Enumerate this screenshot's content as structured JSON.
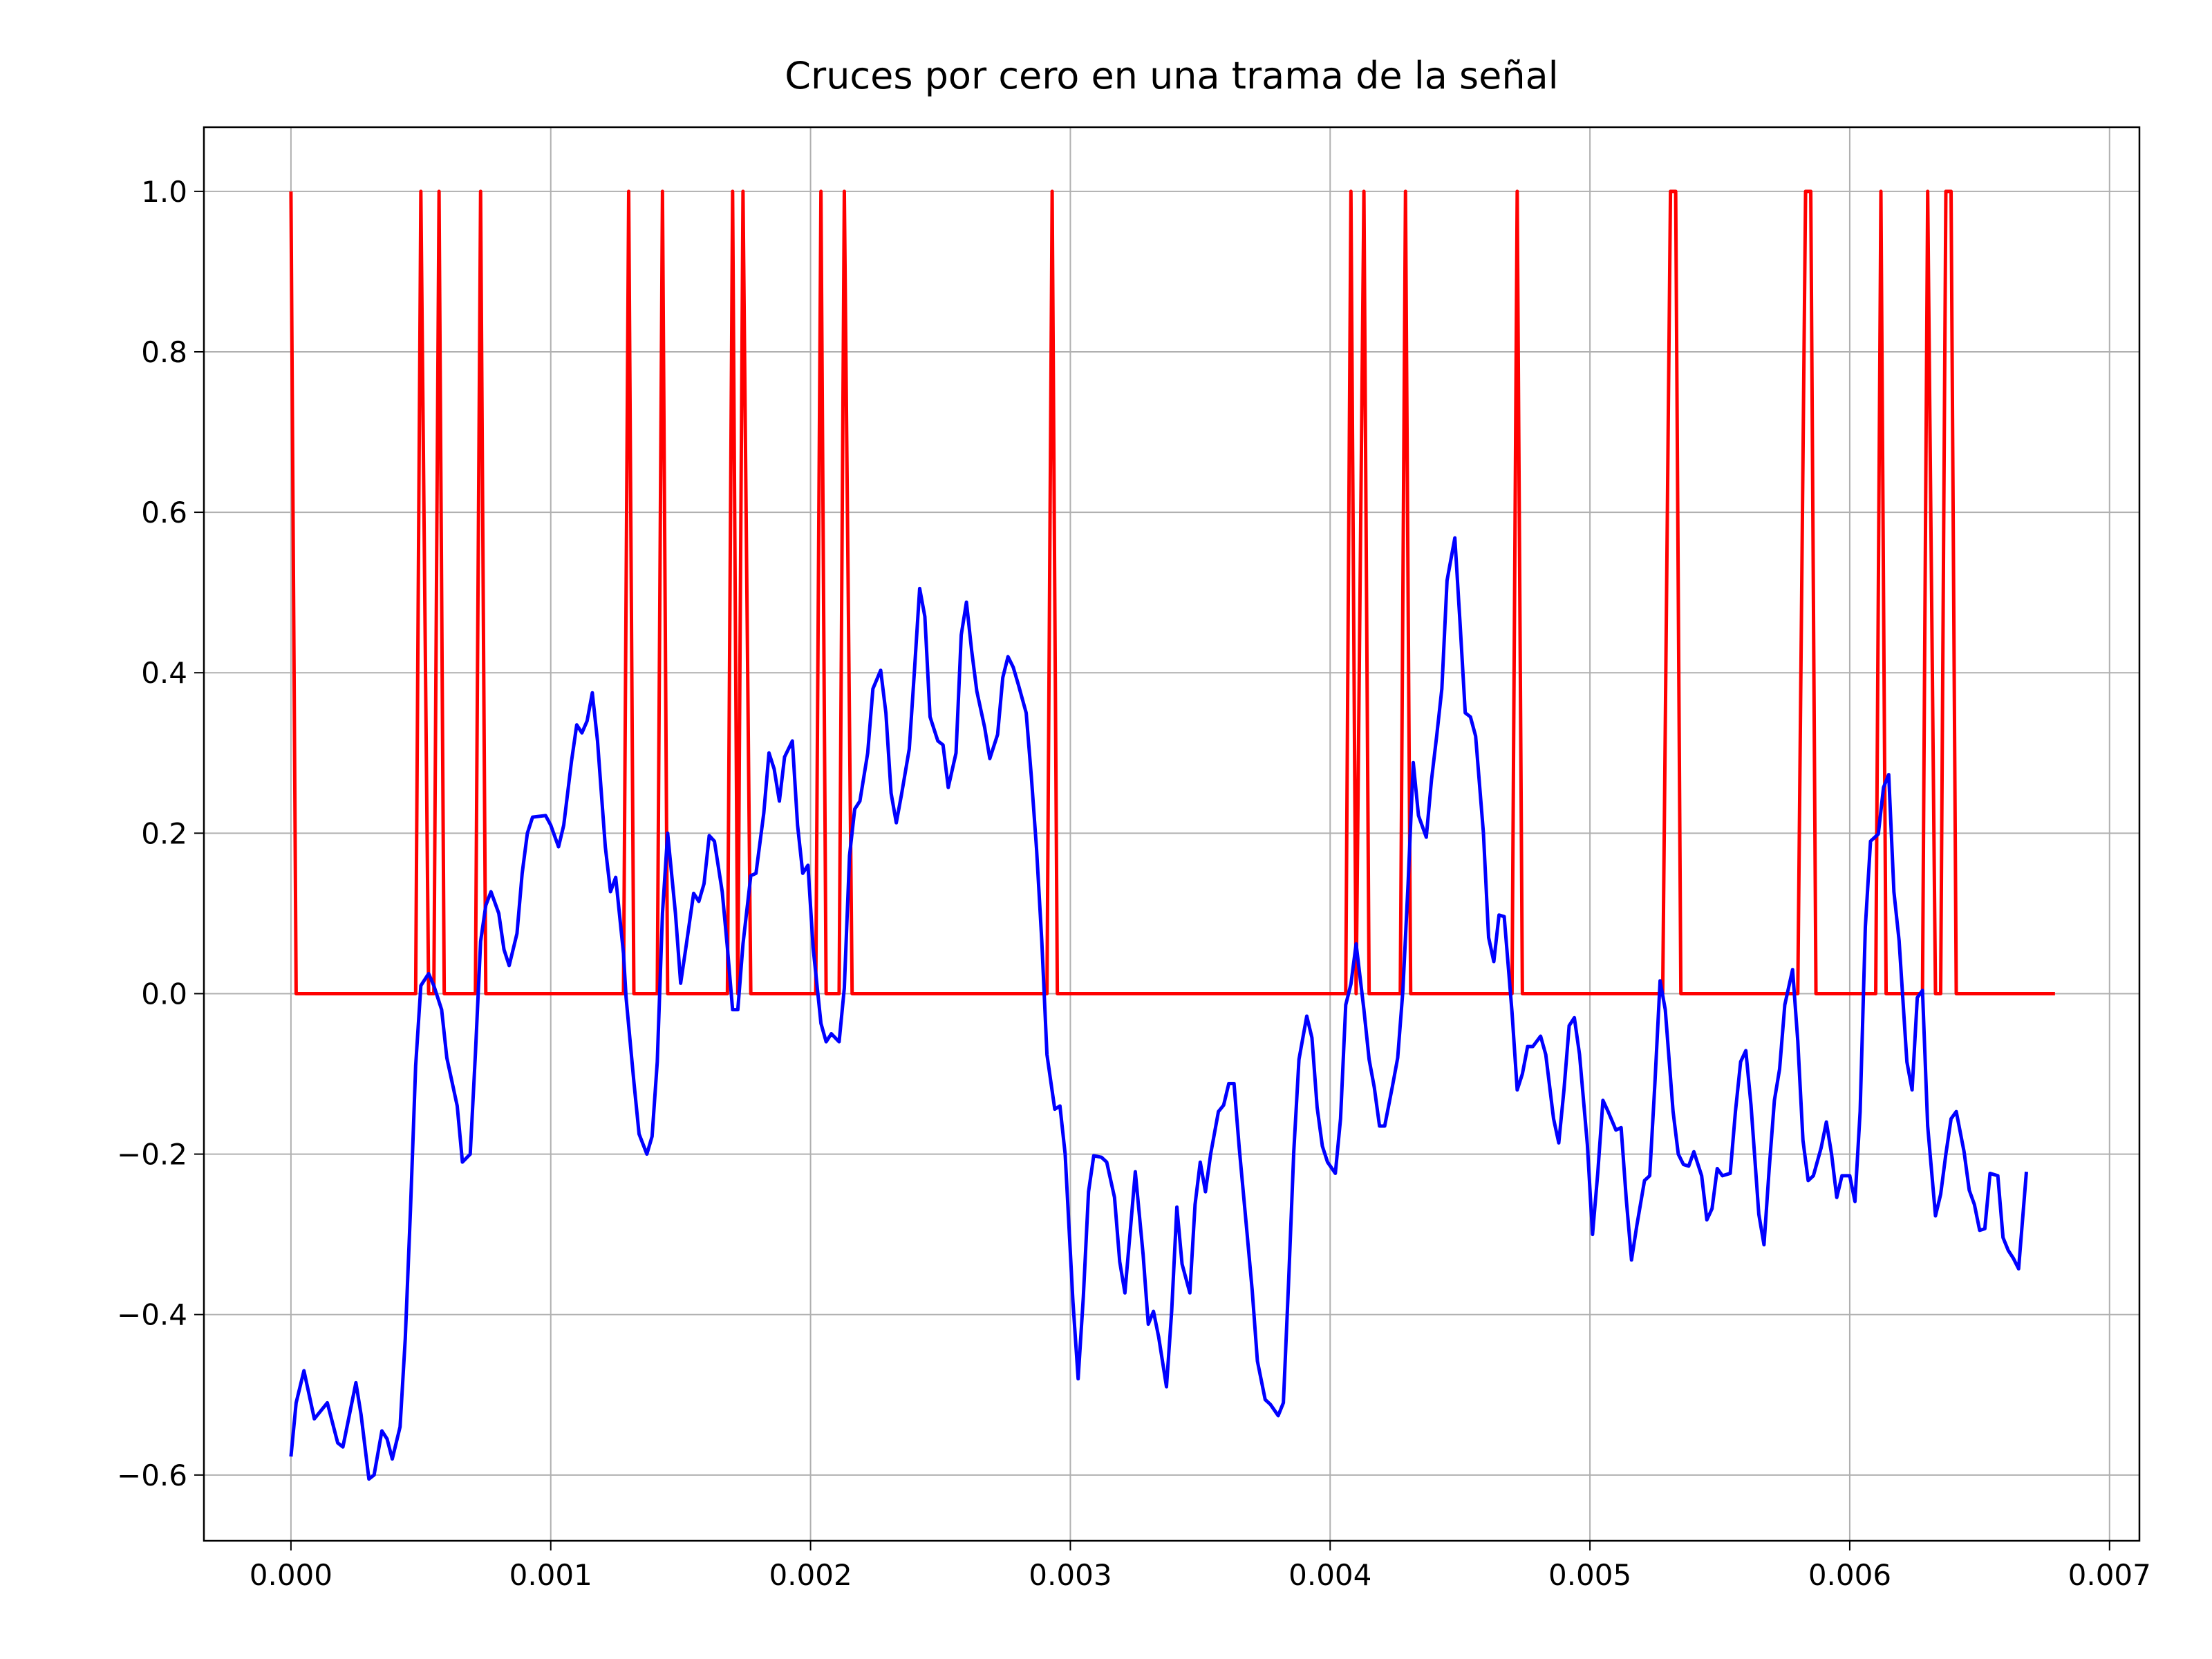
{
  "chart_data": {
    "type": "line",
    "title": "Cruces por cero en una trama de la señal",
    "xlim": [
      -0.000335,
      0.007115
    ],
    "ylim": [
      -0.682,
      1.08
    ],
    "grid": true,
    "xticks": [
      {
        "value": 0,
        "label": "0.000"
      },
      {
        "value": 0.001,
        "label": "0.001"
      },
      {
        "value": 0.002,
        "label": "0.002"
      },
      {
        "value": 0.003,
        "label": "0.003"
      },
      {
        "value": 0.004,
        "label": "0.004"
      },
      {
        "value": 0.005,
        "label": "0.005"
      },
      {
        "value": 0.006,
        "label": "0.006"
      },
      {
        "value": 0.007,
        "label": "0.007"
      }
    ],
    "yticks": [
      {
        "value": -0.6,
        "label": "−0.6"
      },
      {
        "value": -0.4,
        "label": "−0.4"
      },
      {
        "value": -0.2,
        "label": "−0.2"
      },
      {
        "value": 0,
        "label": "0.0"
      },
      {
        "value": 0.2,
        "label": "0.2"
      },
      {
        "value": 0.4,
        "label": "0.4"
      },
      {
        "value": 0.6,
        "label": "0.6"
      },
      {
        "value": 0.8,
        "label": "0.8"
      },
      {
        "value": 1,
        "label": "1.0"
      }
    ],
    "series": [
      {
        "color": "#ff0000",
        "x": [
          0,
          2e-05,
          0.00048,
          0.0005,
          0.00053,
          0.00055,
          0.00057,
          0.00059,
          0.00071,
          0.00073,
          0.00075,
          0.00128,
          0.0013,
          0.00132,
          0.00141,
          0.00143,
          0.00145,
          0.00168,
          0.0017,
          0.00172,
          0.00174,
          0.00177,
          0.00202,
          0.00204,
          0.00206,
          0.00211,
          0.00213,
          0.00216,
          0.00291,
          0.00293,
          0.00295,
          0.00406,
          0.00408,
          0.0041,
          0.00413,
          0.00415,
          0.00427,
          0.00429,
          0.00431,
          0.0047,
          0.00472,
          0.00474,
          0.00528,
          0.00531,
          0.00533,
          0.00535,
          0.0058,
          0.00583,
          0.00585,
          0.00587,
          0.0061,
          0.00612,
          0.00614,
          0.00628,
          0.0063,
          0.00633,
          0.00635,
          0.00637,
          0.00639,
          0.00641,
          0.00679
        ],
        "values": [
          1,
          0,
          0,
          1,
          0,
          0,
          1,
          0,
          0,
          1,
          0,
          0,
          1,
          0,
          0,
          1,
          0,
          0,
          1,
          0,
          1,
          0,
          0,
          1,
          0,
          0,
          1,
          0,
          0,
          1,
          0,
          0,
          1,
          0,
          1,
          0,
          0,
          1,
          0,
          0,
          1,
          0,
          0,
          1,
          1,
          0,
          0,
          1,
          1,
          0,
          0,
          1,
          0,
          0,
          1,
          0,
          0,
          1,
          1,
          0,
          0
        ]
      },
      {
        "color": "#0000ff",
        "x": [
          0,
          2e-05,
          5e-05,
          9e-05,
          0.00014,
          0.00018,
          0.0002,
          0.00025,
          0.00027,
          0.0003,
          0.00032,
          0.00035,
          0.00037,
          0.00039,
          0.00042,
          0.00044,
          0.00046,
          0.00048,
          0.0005,
          0.00053,
          0.00055,
          0.00058,
          0.0006,
          0.00064,
          0.00066,
          0.00069,
          0.00071,
          0.00073,
          0.00075,
          0.00077,
          0.0008,
          0.00082,
          0.00084,
          0.00087,
          0.00089,
          0.00091,
          0.00093,
          0.00098,
          0.001,
          0.00103,
          0.00105,
          0.00108,
          0.0011,
          0.00112,
          0.00114,
          0.00116,
          0.00118,
          0.00121,
          0.00123,
          0.00125,
          0.00128,
          0.00129,
          0.00132,
          0.00134,
          0.00137,
          0.00139,
          0.00141,
          0.00143,
          0.00145,
          0.00148,
          0.0015,
          0.00152,
          0.00155,
          0.00157,
          0.00159,
          0.00161,
          0.00163,
          0.00166,
          0.00168,
          0.0017,
          0.00172,
          0.00174,
          0.00177,
          0.00179,
          0.00182,
          0.00184,
          0.00186,
          0.00188,
          0.0019,
          0.00193,
          0.00195,
          0.00197,
          0.00199,
          0.00201,
          0.00204,
          0.00206,
          0.00208,
          0.00211,
          0.00213,
          0.00215,
          0.00217,
          0.00219,
          0.00222,
          0.00224,
          0.00227,
          0.00229,
          0.00231,
          0.00233,
          0.00235,
          0.00238,
          0.0024,
          0.00242,
          0.00244,
          0.00246,
          0.00249,
          0.00251,
          0.00253,
          0.00256,
          0.00258,
          0.0026,
          0.00262,
          0.00264,
          0.00267,
          0.00269,
          0.00272,
          0.00274,
          0.00276,
          0.00278,
          0.0028,
          0.00283,
          0.00285,
          0.00287,
          0.00289,
          0.00291,
          0.00294,
          0.00296,
          0.00298,
          0.00301,
          0.00303,
          0.00305,
          0.00307,
          0.00309,
          0.00312,
          0.00314,
          0.00317,
          0.00319,
          0.00321,
          0.00323,
          0.00325,
          0.00328,
          0.0033,
          0.00332,
          0.00334,
          0.00337,
          0.00339,
          0.00341,
          0.00343,
          0.00346,
          0.00348,
          0.0035,
          0.00352,
          0.00354,
          0.00357,
          0.00359,
          0.00361,
          0.00363,
          0.00365,
          0.00368,
          0.0037,
          0.00372,
          0.00375,
          0.00377,
          0.0038,
          0.00382,
          0.00384,
          0.00386,
          0.00388,
          0.00391,
          0.00393,
          0.00395,
          0.00397,
          0.00399,
          0.00402,
          0.00404,
          0.00406,
          0.00408,
          0.0041,
          0.00413,
          0.00415,
          0.00417,
          0.00419,
          0.00421,
          0.00424,
          0.00426,
          0.00428,
          0.0043,
          0.00432,
          0.00434,
          0.00437,
          0.00439,
          0.00441,
          0.00443,
          0.00445,
          0.00448,
          0.0045,
          0.00452,
          0.00454,
          0.00456,
          0.00459,
          0.00461,
          0.00463,
          0.00465,
          0.00467,
          0.0047,
          0.00472,
          0.00474,
          0.00476,
          0.00478,
          0.00481,
          0.00483,
          0.00486,
          0.00488,
          0.0049,
          0.00492,
          0.00494,
          0.00496,
          0.00499,
          0.00501,
          0.00503,
          0.00505,
          0.00507,
          0.0051,
          0.00512,
          0.00514,
          0.00516,
          0.00518,
          0.00521,
          0.00523,
          0.00525,
          0.00527,
          0.00529,
          0.00532,
          0.00534,
          0.00536,
          0.00538,
          0.0054,
          0.00543,
          0.00545,
          0.00547,
          0.00549,
          0.00551,
          0.00554,
          0.00556,
          0.00558,
          0.0056,
          0.00562,
          0.00565,
          0.00567,
          0.00569,
          0.00571,
          0.00573,
          0.00575,
          0.00578,
          0.0058,
          0.00582,
          0.00584,
          0.00586,
          0.00589,
          0.00591,
          0.00593,
          0.00595,
          0.00597,
          0.006,
          0.00602,
          0.00604,
          0.00606,
          0.00608,
          0.00611,
          0.00613,
          0.00615,
          0.00617,
          0.00619,
          0.00622,
          0.00624,
          0.00626,
          0.00628,
          0.0063,
          0.00633,
          0.00635,
          0.00637,
          0.00639,
          0.00641,
          0.00644,
          0.00646,
          0.00648,
          0.0065,
          0.00652,
          0.00654,
          0.00657,
          0.00659,
          0.00661,
          0.00663,
          0.00665,
          0.00668
        ],
        "values": [
          -0.577,
          -0.51,
          -0.47,
          -0.53,
          -0.51,
          -0.56,
          -0.565,
          -0.485,
          -0.525,
          -0.605,
          -0.6,
          -0.545,
          -0.555,
          -0.58,
          -0.54,
          -0.43,
          -0.27,
          -0.09,
          0.01,
          0.025,
          0.01,
          -0.02,
          -0.08,
          -0.14,
          -0.21,
          -0.2,
          -0.075,
          0.065,
          0.11,
          0.127,
          0.1,
          0.055,
          0.035,
          0.075,
          0.15,
          0.2,
          0.22,
          0.222,
          0.21,
          0.183,
          0.21,
          0.29,
          0.335,
          0.325,
          0.34,
          0.375,
          0.315,
          0.183,
          0.127,
          0.145,
          0.05,
          -0.005,
          -0.11,
          -0.175,
          -0.2,
          -0.178,
          -0.085,
          0.1,
          0.2,
          0.1,
          0.013,
          0.057,
          0.125,
          0.115,
          0.137,
          0.197,
          0.19,
          0.127,
          0.057,
          -0.02,
          -0.02,
          0.062,
          0.147,
          0.15,
          0.225,
          0.3,
          0.28,
          0.24,
          0.295,
          0.315,
          0.21,
          0.15,
          0.16,
          0.057,
          -0.037,
          -0.06,
          -0.05,
          -0.06,
          0.007,
          0.172,
          0.23,
          0.24,
          0.3,
          0.38,
          0.403,
          0.35,
          0.25,
          0.213,
          0.248,
          0.305,
          0.403,
          0.505,
          0.47,
          0.345,
          0.315,
          0.31,
          0.257,
          0.3,
          0.447,
          0.488,
          0.428,
          0.377,
          0.332,
          0.293,
          0.323,
          0.394,
          0.42,
          0.407,
          0.385,
          0.35,
          0.27,
          0.18,
          0.066,
          -0.076,
          -0.144,
          -0.14,
          -0.2,
          -0.384,
          -0.48,
          -0.378,
          -0.247,
          -0.202,
          -0.204,
          -0.21,
          -0.254,
          -0.334,
          -0.373,
          -0.298,
          -0.222,
          -0.325,
          -0.412,
          -0.396,
          -0.428,
          -0.49,
          -0.396,
          -0.266,
          -0.337,
          -0.373,
          -0.263,
          -0.21,
          -0.247,
          -0.2,
          -0.147,
          -0.139,
          -0.112,
          -0.112,
          -0.192,
          -0.298,
          -0.37,
          -0.458,
          -0.506,
          -0.512,
          -0.526,
          -0.51,
          -0.36,
          -0.197,
          -0.082,
          -0.028,
          -0.055,
          -0.142,
          -0.19,
          -0.21,
          -0.224,
          -0.156,
          -0.014,
          0.012,
          0.062,
          -0.02,
          -0.082,
          -0.117,
          -0.165,
          -0.165,
          -0.115,
          -0.08,
          0.004,
          0.137,
          0.288,
          0.222,
          0.195,
          0.266,
          0.321,
          0.38,
          0.515,
          0.568,
          0.462,
          0.35,
          0.345,
          0.321,
          0.2,
          0.07,
          0.04,
          0.098,
          0.096,
          -0.023,
          -0.12,
          -0.1,
          -0.066,
          -0.066,
          -0.053,
          -0.076,
          -0.156,
          -0.186,
          -0.12,
          -0.04,
          -0.03,
          -0.076,
          -0.188,
          -0.3,
          -0.224,
          -0.133,
          -0.147,
          -0.17,
          -0.167,
          -0.257,
          -0.332,
          -0.29,
          -0.233,
          -0.227,
          -0.112,
          0.016,
          -0.02,
          -0.147,
          -0.2,
          -0.213,
          -0.215,
          -0.197,
          -0.227,
          -0.282,
          -0.268,
          -0.218,
          -0.227,
          -0.224,
          -0.147,
          -0.085,
          -0.071,
          -0.139,
          -0.275,
          -0.313,
          -0.218,
          -0.133,
          -0.094,
          -0.014,
          0.03,
          -0.059,
          -0.183,
          -0.233,
          -0.227,
          -0.192,
          -0.16,
          -0.2,
          -0.254,
          -0.227,
          -0.227,
          -0.259,
          -0.147,
          0.083,
          0.19,
          0.199,
          0.257,
          0.273,
          0.127,
          0.066,
          -0.085,
          -0.12,
          -0.005,
          0.004,
          -0.165,
          -0.277,
          -0.25,
          -0.2,
          -0.156,
          -0.147,
          -0.197,
          -0.245,
          -0.263,
          -0.295,
          -0.293,
          -0.224,
          -0.227,
          -0.304,
          -0.32,
          -0.33,
          -0.343,
          -0.222
        ]
      }
    ]
  }
}
